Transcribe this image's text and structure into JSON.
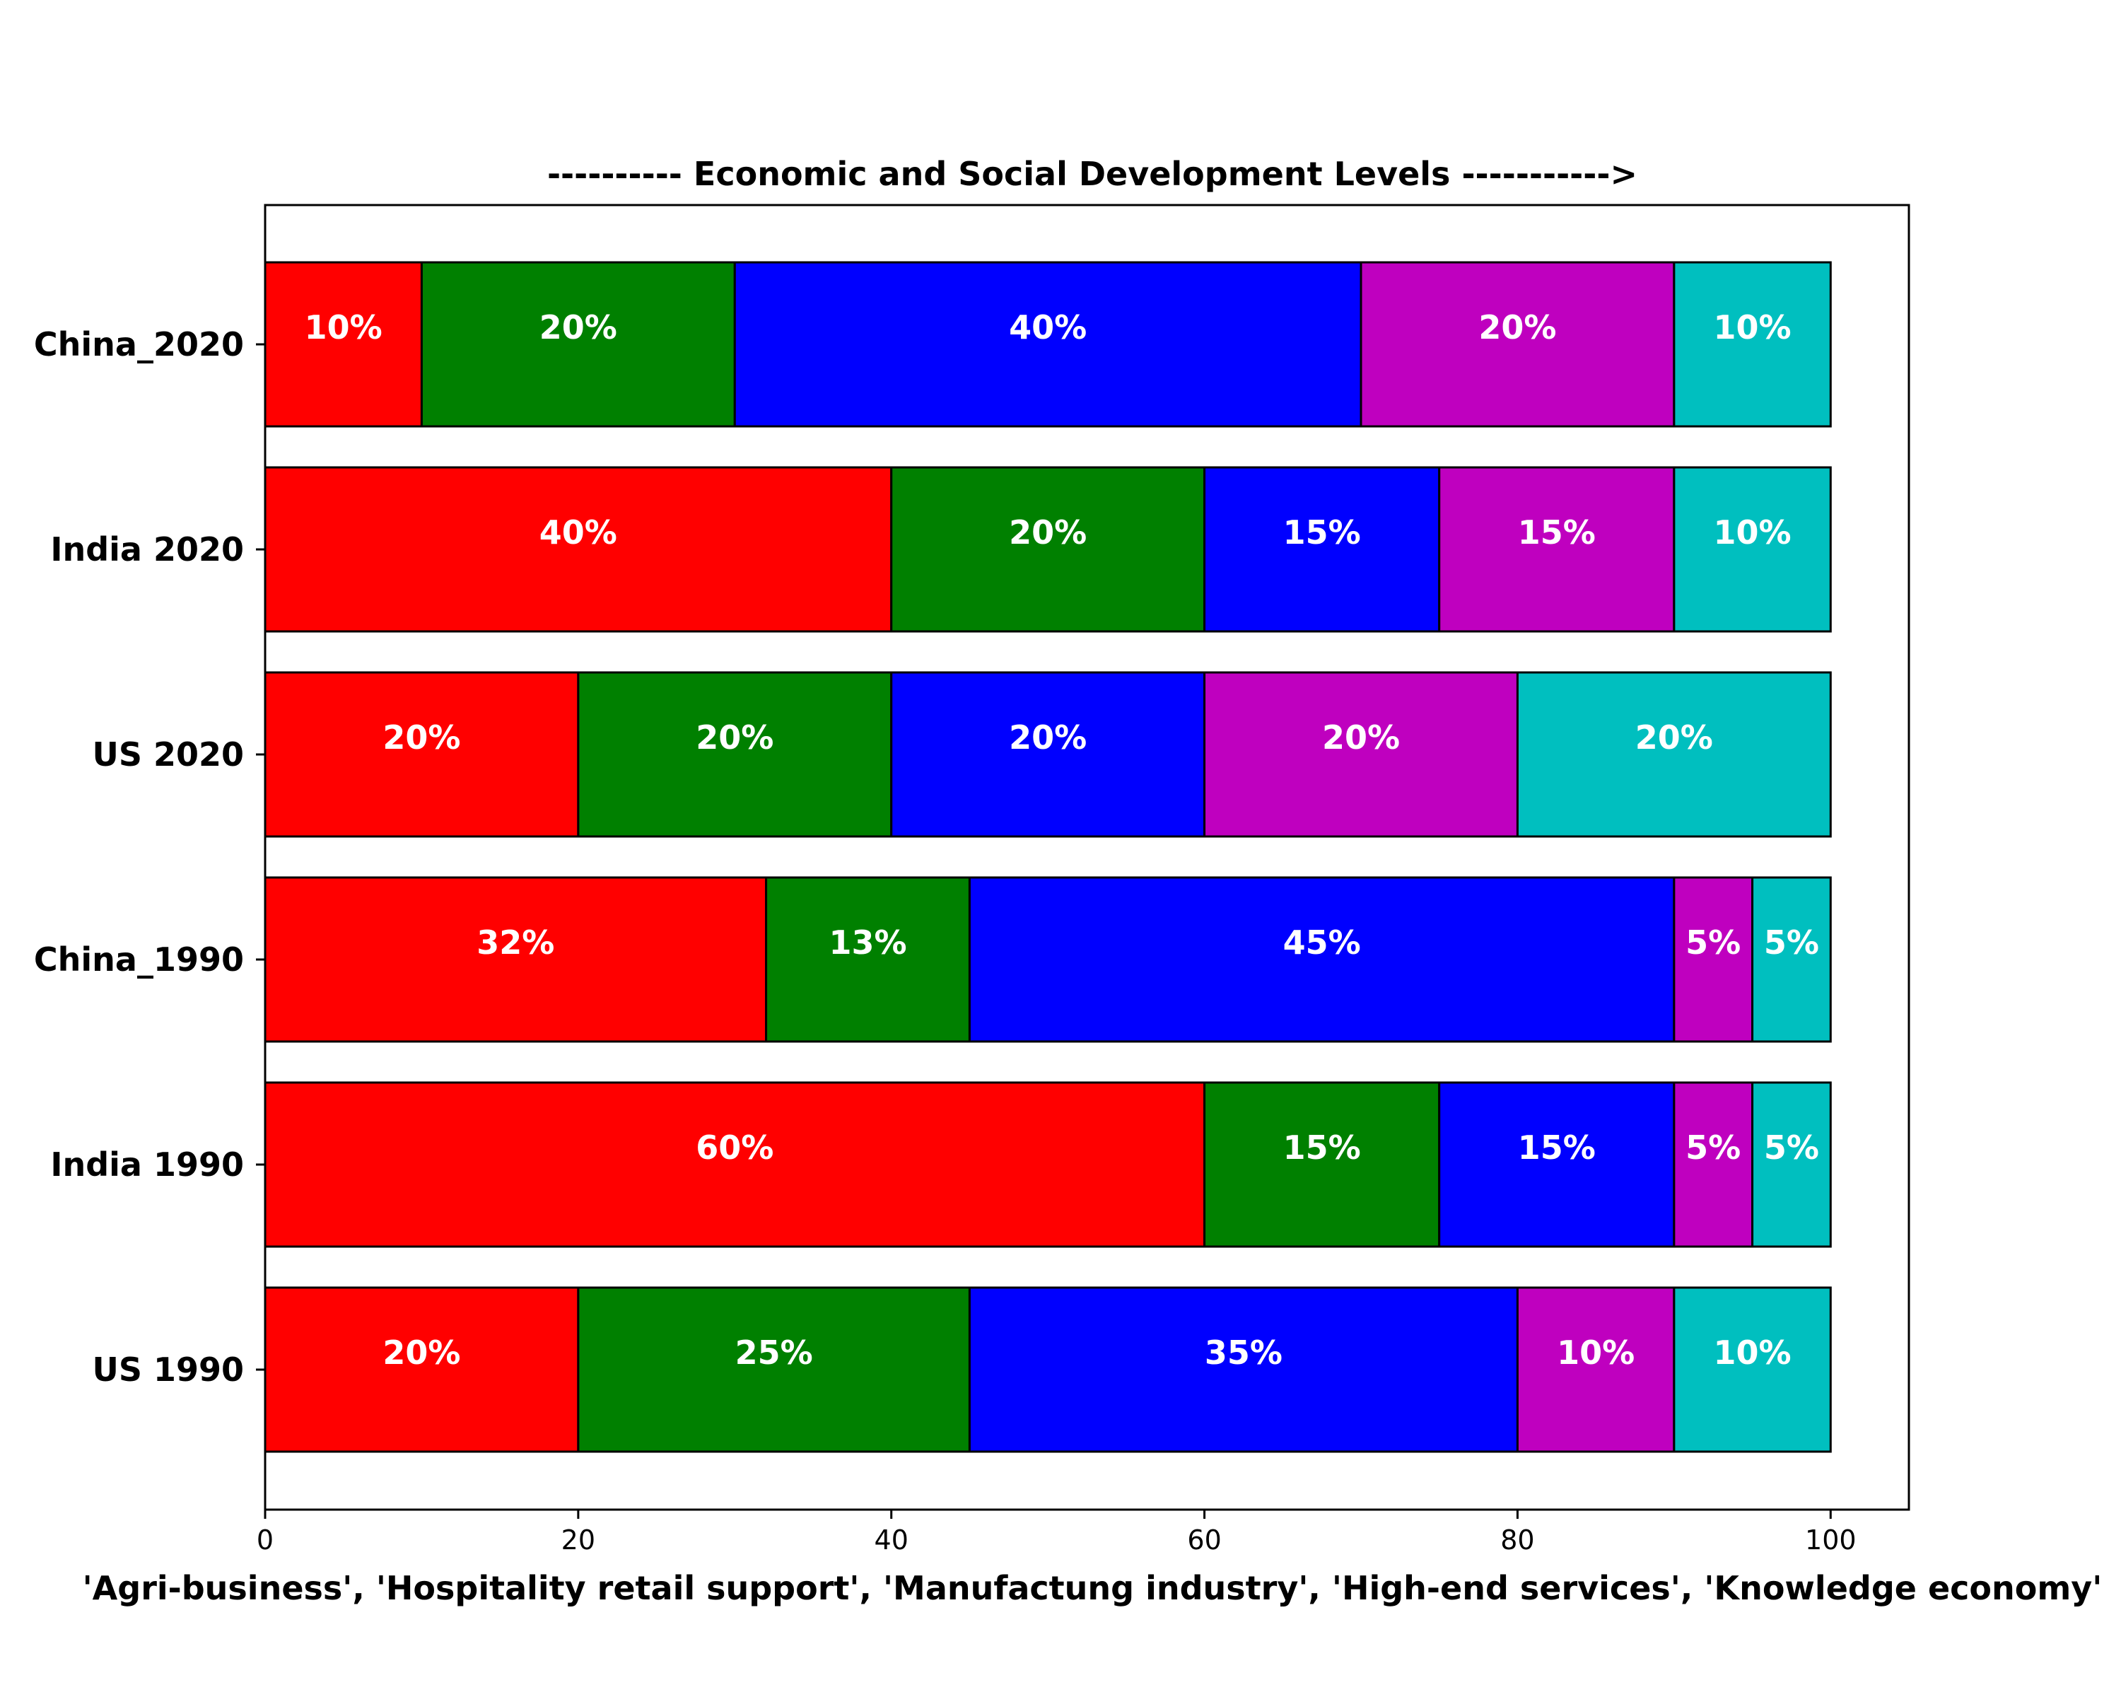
{
  "chart_data": {
    "type": "bar",
    "orientation": "horizontal",
    "stacked": true,
    "title": "---------- Economic and Social Development Levels ----------->",
    "xlabel": "'Agri-business', 'Hospitality retail support', 'Manufactung industry', 'High-end services', 'Knowledge economy'",
    "ylabel": "",
    "xlim": [
      0,
      105
    ],
    "xticks": [
      "0",
      "20",
      "40",
      "60",
      "80",
      "100"
    ],
    "grid": false,
    "legend": "none",
    "categories": [
      "China_2020",
      "India 2020",
      "US 2020",
      "China_1990",
      "India 1990",
      "US 1990"
    ],
    "series": [
      {
        "color": "#ff0000",
        "values": [
          10,
          40,
          20,
          32,
          60,
          20
        ],
        "labels": [
          "10%",
          "40%",
          "20%",
          "32%",
          "60%",
          "20%"
        ]
      },
      {
        "color": "#008000",
        "values": [
          20,
          20,
          20,
          13,
          15,
          25
        ],
        "labels": [
          "20%",
          "20%",
          "20%",
          "13%",
          "15%",
          "25%"
        ]
      },
      {
        "color": "#0000ff",
        "values": [
          40,
          15,
          20,
          45,
          15,
          35
        ],
        "labels": [
          "40%",
          "15%",
          "20%",
          "45%",
          "15%",
          "35%"
        ]
      },
      {
        "color": "#bf00bf",
        "values": [
          20,
          15,
          20,
          5,
          5,
          10
        ],
        "labels": [
          "20%",
          "15%",
          "20%",
          "5%",
          "5%",
          "10%"
        ]
      },
      {
        "color": "#00bfbf",
        "values": [
          10,
          10,
          20,
          5,
          5,
          10
        ],
        "labels": [
          "10%",
          "10%",
          "20%",
          "5%",
          "5%",
          "10%"
        ]
      }
    ]
  }
}
